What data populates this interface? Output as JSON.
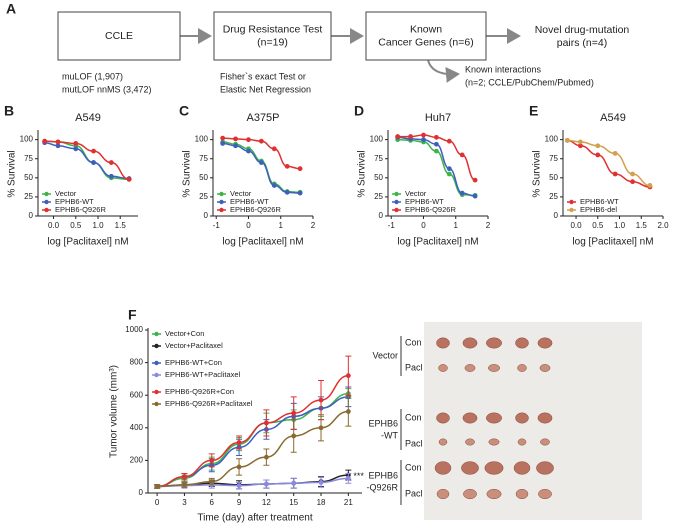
{
  "diagram": {
    "label": "A",
    "boxes": [
      {
        "lines": [
          "CCLE"
        ]
      },
      {
        "lines": [
          "Drug Resistance Test",
          "(n=19)"
        ]
      },
      {
        "lines": [
          "Known",
          "Cancer Genes (n=6)"
        ]
      }
    ],
    "result": [
      "Novel drug-mutation",
      "pairs (n=4)"
    ],
    "notes": [
      [
        "muLOF (1,907)",
        "mutLOF nnMS (3,472)"
      ],
      [
        "Fisher`s exact Test or",
        "Elastic Net Regression"
      ]
    ],
    "branch": [
      "Known interactions",
      "(n=2; CCLE/PubChem/Pubmed)"
    ]
  },
  "chart_data": [
    {
      "type": "line",
      "label": "B",
      "title": "A549",
      "x_label": "log [Paclitaxel] nM",
      "y_label": "% Survival",
      "x": [
        -0.2,
        0.1,
        0.5,
        0.9,
        1.3,
        1.7
      ],
      "series": [
        {
          "name": "Vector",
          "color": "#3cb44b",
          "values": [
            98,
            97,
            92,
            70,
            50,
            48
          ]
        },
        {
          "name": "EPHB6-WT",
          "color": "#3f5fbf",
          "values": [
            96,
            92,
            88,
            70,
            52,
            49
          ]
        },
        {
          "name": "EPHB6-Q926R",
          "color": "#e03030",
          "values": [
            98,
            97,
            95,
            85,
            70,
            48
          ]
        }
      ],
      "xlim": [
        -0.35,
        1.9
      ],
      "xticks": [
        {
          "value": 0,
          "label": "0.0"
        },
        {
          "value": 0.5,
          "label": "0.5"
        },
        {
          "value": 1,
          "label": "1.0"
        },
        {
          "value": 1.5,
          "label": "1.5"
        }
      ],
      "ylim": [
        0,
        110
      ],
      "yticks": [
        0,
        25,
        50,
        75,
        100
      ],
      "legend": "lower left"
    },
    {
      "type": "line",
      "label": "C",
      "title": "A375P",
      "x_label": "log [Paclitaxel] nM",
      "y_label": "% Survival",
      "x": [
        -0.8,
        -0.4,
        0,
        0.4,
        0.8,
        1.2,
        1.6
      ],
      "series": [
        {
          "name": "Vector",
          "color": "#3cb44b",
          "values": [
            97,
            94,
            88,
            72,
            42,
            32,
            31
          ]
        },
        {
          "name": "EPHB6-WT",
          "color": "#3f5fbf",
          "values": [
            95,
            92,
            85,
            70,
            40,
            31,
            30
          ]
        },
        {
          "name": "EPHB6-Q926R",
          "color": "#e03030",
          "values": [
            102,
            101,
            100,
            98,
            88,
            65,
            62
          ]
        }
      ],
      "xlim": [
        -1.1,
        2
      ],
      "xticks": [
        -1,
        0,
        1,
        2
      ],
      "ylim": [
        0,
        110
      ],
      "yticks": [
        0,
        25,
        50,
        75,
        100
      ],
      "legend": "lower left"
    },
    {
      "type": "line",
      "label": "D",
      "title": "Huh7",
      "x_label": "log [Paclitaxel] nM",
      "y_label": "% Survival",
      "x": [
        -0.8,
        -0.4,
        0,
        0.4,
        0.8,
        1.2,
        1.6
      ],
      "series": [
        {
          "name": "Vector",
          "color": "#3cb44b",
          "values": [
            100,
            99,
            97,
            85,
            55,
            28,
            27
          ]
        },
        {
          "name": "EPHB6-WT",
          "color": "#3f5fbf",
          "values": [
            103,
            101,
            100,
            94,
            62,
            30,
            26
          ]
        },
        {
          "name": "EPHB6-Q926R",
          "color": "#e03030",
          "values": [
            104,
            104,
            106,
            103,
            98,
            80,
            47
          ]
        }
      ],
      "xlim": [
        -1.1,
        2
      ],
      "xticks": [
        -1,
        0,
        1,
        2
      ],
      "ylim": [
        0,
        110
      ],
      "yticks": [
        0,
        25,
        50,
        75,
        100
      ],
      "legend": "lower left"
    },
    {
      "type": "line",
      "label": "E",
      "title": "A549",
      "x_label": "log [Paclitaxel] nM",
      "y_label": "% Survival",
      "x": [
        -0.2,
        0.1,
        0.5,
        0.9,
        1.3,
        1.7
      ],
      "series": [
        {
          "name": "EPHB6-WT",
          "color": "#e03030",
          "values": [
            99,
            92,
            80,
            55,
            45,
            38
          ]
        },
        {
          "name": "EPHB6-del",
          "color": "#d4a050",
          "values": [
            99,
            97,
            92,
            82,
            55,
            40
          ]
        }
      ],
      "xlim": [
        -0.3,
        2
      ],
      "xticks": [
        {
          "value": 0,
          "label": "0.0"
        },
        {
          "value": 0.5,
          "label": "0.5"
        },
        {
          "value": 1,
          "label": "1.0"
        },
        {
          "value": 1.5,
          "label": "1.5"
        },
        {
          "value": 2,
          "label": "2.0"
        }
      ],
      "ylim": [
        0,
        110
      ],
      "yticks": [
        0,
        25,
        50,
        75,
        100
      ],
      "legend": "lower left"
    },
    {
      "type": "line",
      "label": "F",
      "x_label": "Time (day) after treatment",
      "y_label": "Tumor volume (mm³)",
      "x": [
        0,
        3,
        6,
        9,
        12,
        15,
        18,
        21
      ],
      "series": [
        {
          "name": "Vector+Con",
          "color": "#3cb44b",
          "values": [
            40,
            90,
            180,
            300,
            430,
            450,
            520,
            610
          ],
          "errors": [
            10,
            20,
            40,
            40,
            60,
            60,
            50,
            30
          ]
        },
        {
          "name": "Vector+Paclitaxel",
          "color": "#222222",
          "values": [
            40,
            50,
            60,
            50,
            55,
            60,
            70,
            110
          ],
          "errors": [
            10,
            15,
            20,
            25,
            25,
            30,
            30,
            30
          ]
        },
        {
          "name": "EPHB6-WT+Con",
          "color": "#3f5fbf",
          "values": [
            40,
            100,
            170,
            280,
            390,
            470,
            520,
            590
          ],
          "errors": [
            10,
            20,
            40,
            50,
            60,
            80,
            70,
            60
          ]
        },
        {
          "name": "EPHB6-WT+Paclitaxel",
          "color": "#8a8ae0",
          "values": [
            40,
            45,
            50,
            45,
            55,
            60,
            65,
            90
          ],
          "errors": [
            10,
            15,
            20,
            20,
            25,
            30,
            30,
            30
          ]
        },
        {
          "name": "EPHB6-Q926R+Con",
          "color": "#e03030",
          "values": [
            40,
            100,
            200,
            310,
            430,
            490,
            570,
            720
          ],
          "errors": [
            10,
            20,
            40,
            40,
            80,
            100,
            120,
            120
          ]
        },
        {
          "name": "EPHB6-Q926R+Paclitaxel",
          "color": "#8a6a30",
          "values": [
            40,
            50,
            70,
            160,
            220,
            350,
            400,
            500
          ],
          "errors": [
            10,
            15,
            20,
            50,
            50,
            100,
            80,
            90
          ]
        }
      ],
      "annotation": "***",
      "xlim": [
        -1,
        22.5
      ],
      "xticks": [
        0,
        3,
        6,
        9,
        12,
        15,
        18,
        21
      ],
      "ylim": [
        0,
        1000
      ],
      "yticks": [
        0,
        200,
        400,
        600,
        800,
        1000
      ],
      "legend": "upper left"
    }
  ],
  "photo": {
    "groups": [
      {
        "name": [
          "Vector"
        ],
        "rows": [
          "Con",
          "Pacl"
        ]
      },
      {
        "name": [
          "EPHB6",
          "-WT"
        ],
        "rows": [
          "Con",
          "Pacl"
        ]
      },
      {
        "name": [
          "EPHB6",
          "-Q926R"
        ],
        "rows": [
          "Con",
          "Pacl"
        ]
      }
    ]
  }
}
